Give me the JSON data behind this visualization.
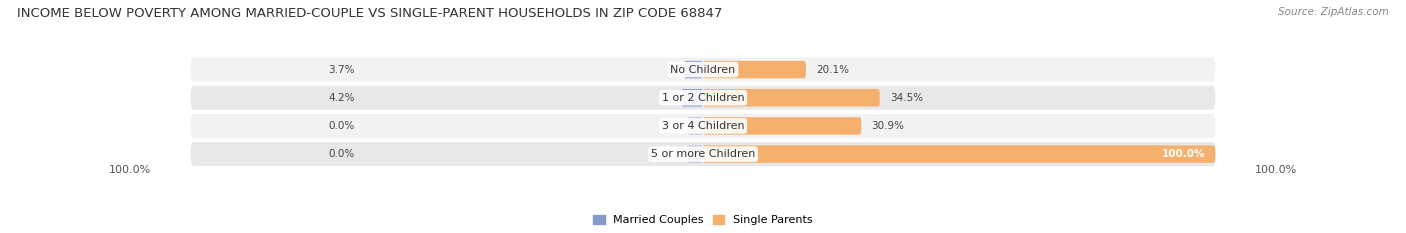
{
  "title": "INCOME BELOW POVERTY AMONG MARRIED-COUPLE VS SINGLE-PARENT HOUSEHOLDS IN ZIP CODE 68847",
  "source": "Source: ZipAtlas.com",
  "categories": [
    "No Children",
    "1 or 2 Children",
    "3 or 4 Children",
    "5 or more Children"
  ],
  "married_values": [
    3.7,
    4.2,
    0.0,
    0.0
  ],
  "single_values": [
    20.1,
    34.5,
    30.9,
    100.0
  ],
  "married_color": "#8899cc",
  "single_color": "#f5b06e",
  "row_light_color": "#f2f2f2",
  "row_dark_color": "#e8e8e8",
  "max_value": 100.0,
  "left_label": "100.0%",
  "right_label": "100.0%",
  "title_fontsize": 9.5,
  "source_fontsize": 7.5,
  "label_fontsize": 8.0,
  "category_fontsize": 8.0,
  "value_fontsize": 7.5,
  "legend_fontsize": 8.0
}
